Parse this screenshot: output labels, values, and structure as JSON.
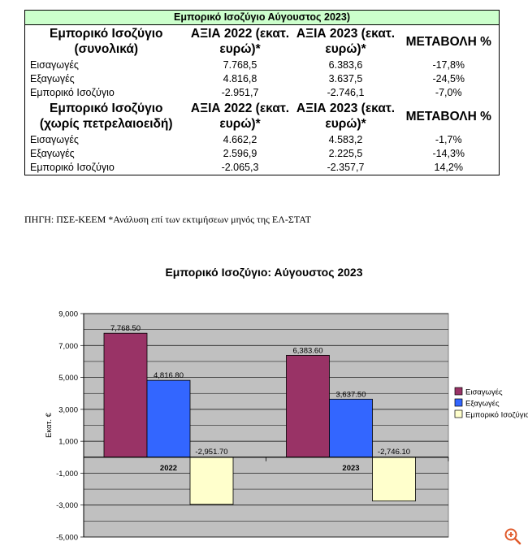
{
  "table": {
    "title": "Εμπορικό Ισοζύγιο Αύγουστος 2023)",
    "section1": {
      "header": [
        "Εμπορικό Ισοζύγιο (συνολικά)",
        "ΑΞΙΑ 2022 (εκατ. ευρώ)*",
        "ΑΞΙΑ 2023 (εκατ. ευρώ)*",
        "ΜΕΤΑΒΟΛΗ %"
      ],
      "rows": [
        [
          "Εισαγωγές",
          "7.768,5",
          "6.383,6",
          "-17,8%"
        ],
        [
          "Εξαγωγές",
          "4.816,8",
          "3.637,5",
          "-24,5%"
        ],
        [
          "Εμπορικό Ισοζύγιο",
          "-2.951,7",
          "-2.746,1",
          "-7,0%"
        ]
      ]
    },
    "section2": {
      "header": [
        "Εμπορικό Ισοζύγιο (χωρίς πετρελαιοειδή)",
        "ΑΞΙΑ 2022 (εκατ. ευρώ)*",
        "ΑΞΙΑ 2023 (εκατ. ευρώ)*",
        "ΜΕΤΑΒΟΛΗ %"
      ],
      "rows": [
        [
          "Εισαγωγές",
          "4.662,2",
          "4.583,2",
          "-1,7%"
        ],
        [
          "Εξαγωγές",
          "2.596,9",
          "2.225,5",
          "-14,3%"
        ],
        [
          "Εμπορικό Ισοζύγιο",
          "-2.065,3",
          "-2.357,7",
          "14,2%"
        ]
      ]
    },
    "source": "ΠΗΓΗ: ΠΣΕ-ΚΕΕΜ *Ανάλυση επί των εκτιμήσεων μηνός της ΕΛ-ΣΤΑΤ"
  },
  "chart_data": {
    "type": "bar",
    "title": "Εμπορικό Ισοζύγιο: Αύγουστος 2023",
    "ylabel": "Εκατ. €",
    "xlabel": "",
    "categories": [
      "2022",
      "2023"
    ],
    "series": [
      {
        "name": "Εισαγωγές",
        "values": [
          7768.5,
          6383.6
        ],
        "labels": [
          "7,768.50",
          "6,383.60"
        ],
        "color": "#993366"
      },
      {
        "name": "Εξαγωγές",
        "values": [
          4816.8,
          3637.5
        ],
        "labels": [
          "4,816.80",
          "3,637.50"
        ],
        "color": "#3366ff"
      },
      {
        "name": "Εμπορικό Ισοζύγιο",
        "values": [
          -2951.7,
          -2746.1
        ],
        "labels": [
          "-2,951.70",
          "-2,746.10"
        ],
        "color": "#ffffcc"
      }
    ],
    "ylim": [
      -5000,
      9000
    ],
    "yticks": [
      9000,
      7000,
      5000,
      3000,
      1000,
      -1000,
      -3000,
      -5000
    ],
    "ytick_labels": [
      "9,000",
      "7,000",
      "5,000",
      "3,000",
      "1,000",
      "-1,000",
      "-3,000",
      "-5,000"
    ],
    "grid": true,
    "plot_background": "#c0c0c0",
    "legend_position": "right"
  },
  "icons": {
    "zoom": "zoom-in-icon",
    "zoom_color": "#e05a2b"
  }
}
